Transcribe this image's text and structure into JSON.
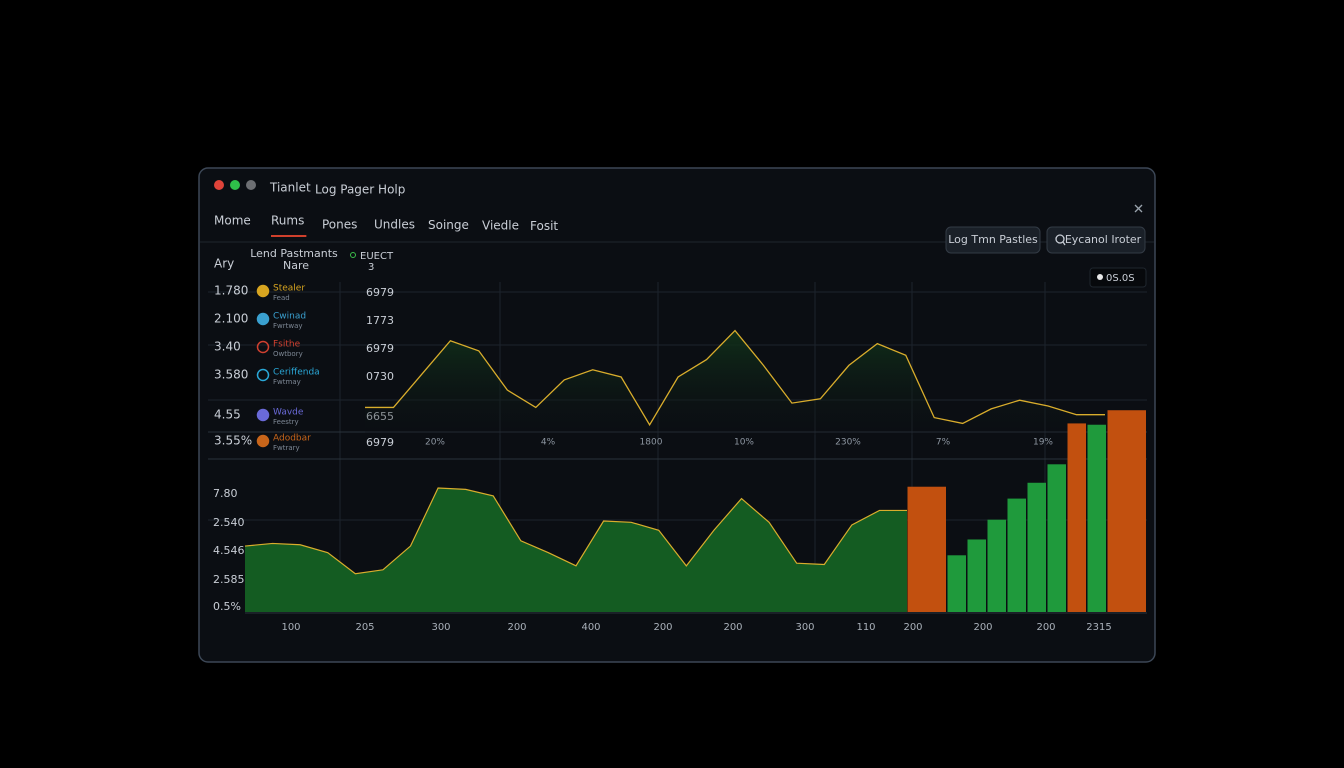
{
  "window": {
    "app_name": "Tianlet",
    "menu": "Log Pager Holp"
  },
  "tabs": [
    "Mome",
    "Rums",
    "Pones",
    "Undles",
    "Soinge",
    "Viedle",
    "Fosit"
  ],
  "active_tab": 1,
  "buttons": [
    "Log Tmn Pastles",
    "Eycanol Iroter"
  ],
  "status": "0S.0S",
  "left_axis": {
    "title": "Ary",
    "labels": [
      "1.780",
      "2.100",
      "3.40",
      "3.580",
      "4.55",
      "3.55%"
    ]
  },
  "legend": {
    "header": [
      "Lend Pastmants",
      "Nare"
    ],
    "badge": [
      "EUECT",
      "3"
    ],
    "rows": [
      {
        "name": "Stealer",
        "sub": "Fead",
        "value": "6979",
        "color": "#d8a520"
      },
      {
        "name": "Cwinad",
        "sub": "Fwrtway",
        "value": "1773",
        "color": "#3aa0d0"
      },
      {
        "name": "Fsithe",
        "sub": "Owtbory",
        "value": "6979",
        "color": "#d04030"
      },
      {
        "name": "Ceriffenda",
        "sub": "Fwtmay",
        "value": "0730",
        "color": "#2aa8d8"
      },
      {
        "name": "Wavde",
        "sub": "Feestry",
        "value": "6655",
        "color": "#6a6ad8"
      },
      {
        "name": "Adodbar",
        "sub": "Fwtrary",
        "value": "6979",
        "color": "#c8651a"
      }
    ]
  },
  "top_chart": {
    "type": "line",
    "color": "#d9ad2c",
    "ylim": [
      0,
      100
    ],
    "values": [
      19,
      19,
      42,
      65,
      58,
      31,
      19,
      38,
      45,
      40,
      7,
      40,
      52,
      72,
      48,
      22,
      25,
      48,
      63,
      55,
      12,
      8,
      18,
      24,
      20,
      14,
      14
    ],
    "x_labels": [
      "20%",
      "4%",
      "1800",
      "10%",
      "230%",
      "7%",
      "19%"
    ]
  },
  "bottom_chart": {
    "ylim": [
      0,
      160
    ],
    "y_labels": [
      "7.80",
      "2.540",
      "4.546",
      "2.585",
      "0.5%"
    ],
    "x_labels": [
      "100",
      "205",
      "300",
      "200",
      "400",
      "200",
      "200",
      "300",
      "110",
      "200",
      "200",
      "200",
      "2315"
    ],
    "area": {
      "type": "area",
      "color": "#d9ad2c",
      "fill": "#145c22",
      "values": [
        50,
        52,
        51,
        45,
        29,
        32,
        50,
        94,
        93,
        88,
        54,
        45,
        35,
        69,
        68,
        62,
        35,
        62,
        86,
        68,
        37,
        36,
        66,
        77,
        77
      ]
    },
    "bars": {
      "type": "bar",
      "values": [
        95,
        43,
        55,
        70,
        86,
        98,
        112,
        143,
        142,
        153
      ],
      "colors": [
        "#c2500f",
        "#1f9a3c",
        "#1f9a3c",
        "#1f9a3c",
        "#1f9a3c",
        "#1f9a3c",
        "#1f9a3c",
        "#c2500f",
        "#1f9a3c",
        "#c2500f"
      ]
    }
  }
}
